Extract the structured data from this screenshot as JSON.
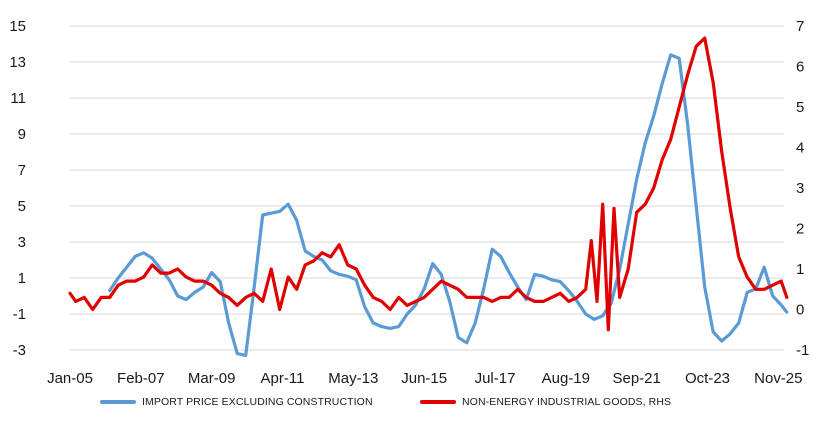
{
  "chart_data": {
    "type": "line",
    "x_ticks": [
      "Jan-05",
      "Feb-07",
      "Mar-09",
      "Apr-11",
      "May-13",
      "Jun-15",
      "Jul-17",
      "Aug-19",
      "Sep-21",
      "Oct-23",
      "Nov-25"
    ],
    "x_tick_decimal_years": [
      2005.0,
      2007.083,
      2009.167,
      2011.25,
      2013.333,
      2015.417,
      2017.5,
      2019.583,
      2021.667,
      2023.75,
      2025.833
    ],
    "y_left": {
      "ticks": [
        "15",
        "13",
        "11",
        "9",
        "7",
        "5",
        "3",
        "1",
        "-1",
        "-3"
      ],
      "range": [
        -3,
        15
      ]
    },
    "y_right": {
      "ticks": [
        "7",
        "6",
        "5",
        "4",
        "3",
        "2",
        "1",
        "0",
        "-1"
      ],
      "range": [
        -1,
        7
      ]
    },
    "grid": true,
    "series": [
      {
        "name": "IMPORT PRICE EXCLUDING CONSTRUCTION",
        "axis": "left",
        "color": "#5b9bd5",
        "points": [
          [
            "2006-03",
            0.3
          ],
          [
            "2006-06",
            1.0
          ],
          [
            "2006-09",
            1.6
          ],
          [
            "2006-12",
            2.2
          ],
          [
            "2007-03",
            2.4
          ],
          [
            "2007-06",
            2.1
          ],
          [
            "2007-09",
            1.5
          ],
          [
            "2007-12",
            0.9
          ],
          [
            "2008-03",
            0.0
          ],
          [
            "2008-06",
            -0.2
          ],
          [
            "2008-09",
            0.2
          ],
          [
            "2008-12",
            0.5
          ],
          [
            "2009-03",
            1.3
          ],
          [
            "2009-06",
            0.8
          ],
          [
            "2009-09",
            -1.5
          ],
          [
            "2009-12",
            -3.2
          ],
          [
            "2010-03",
            -3.3
          ],
          [
            "2010-06",
            0.5
          ],
          [
            "2010-09",
            4.5
          ],
          [
            "2010-12",
            4.6
          ],
          [
            "2011-03",
            4.7
          ],
          [
            "2011-06",
            5.1
          ],
          [
            "2011-09",
            4.2
          ],
          [
            "2011-12",
            2.5
          ],
          [
            "2012-03",
            2.2
          ],
          [
            "2012-06",
            2.0
          ],
          [
            "2012-09",
            1.4
          ],
          [
            "2012-12",
            1.2
          ],
          [
            "2013-03",
            1.1
          ],
          [
            "2013-06",
            0.9
          ],
          [
            "2013-09",
            -0.6
          ],
          [
            "2013-12",
            -1.5
          ],
          [
            "2014-03",
            -1.7
          ],
          [
            "2014-06",
            -1.8
          ],
          [
            "2014-09",
            -1.7
          ],
          [
            "2014-12",
            -1.0
          ],
          [
            "2015-03",
            -0.5
          ],
          [
            "2015-06",
            0.4
          ],
          [
            "2015-09",
            1.8
          ],
          [
            "2015-12",
            1.2
          ],
          [
            "2016-03",
            -0.3
          ],
          [
            "2016-06",
            -2.3
          ],
          [
            "2016-09",
            -2.6
          ],
          [
            "2016-12",
            -1.5
          ],
          [
            "2017-03",
            0.4
          ],
          [
            "2017-06",
            2.6
          ],
          [
            "2017-09",
            2.2
          ],
          [
            "2017-12",
            1.3
          ],
          [
            "2018-03",
            0.5
          ],
          [
            "2018-06",
            -0.2
          ],
          [
            "2018-09",
            1.2
          ],
          [
            "2018-12",
            1.1
          ],
          [
            "2019-03",
            0.9
          ],
          [
            "2019-06",
            0.8
          ],
          [
            "2019-09",
            0.3
          ],
          [
            "2019-12",
            -0.3
          ],
          [
            "2020-03",
            -1.0
          ],
          [
            "2020-06",
            -1.3
          ],
          [
            "2020-09",
            -1.1
          ],
          [
            "2020-12",
            -0.4
          ],
          [
            "2021-03",
            1.5
          ],
          [
            "2021-06",
            4.0
          ],
          [
            "2021-09",
            6.5
          ],
          [
            "2021-12",
            8.5
          ],
          [
            "2022-03",
            10.0
          ],
          [
            "2022-06",
            11.8
          ],
          [
            "2022-09",
            13.4
          ],
          [
            "2022-12",
            13.2
          ],
          [
            "2023-03",
            9.5
          ],
          [
            "2023-06",
            5.0
          ],
          [
            "2023-09",
            0.5
          ],
          [
            "2023-12",
            -2.0
          ],
          [
            "2024-03",
            -2.5
          ],
          [
            "2024-06",
            -2.1
          ],
          [
            "2024-09",
            -1.5
          ],
          [
            "2024-12",
            0.2
          ],
          [
            "2025-03",
            0.4
          ],
          [
            "2025-06",
            1.6
          ],
          [
            "2025-09",
            0.0
          ],
          [
            "2025-12",
            -0.5
          ],
          [
            "2026-02",
            -0.9
          ]
        ]
      },
      {
        "name": "NON-ENERGY INDUSTRIAL GOODS, RHS",
        "axis": "right",
        "color": "#e00000",
        "points": [
          [
            "2005-01",
            0.4
          ],
          [
            "2005-03",
            0.2
          ],
          [
            "2005-06",
            0.3
          ],
          [
            "2005-09",
            0.0
          ],
          [
            "2005-12",
            0.3
          ],
          [
            "2006-03",
            0.3
          ],
          [
            "2006-06",
            0.6
          ],
          [
            "2006-09",
            0.7
          ],
          [
            "2006-12",
            0.7
          ],
          [
            "2007-03",
            0.8
          ],
          [
            "2007-06",
            1.1
          ],
          [
            "2007-09",
            0.9
          ],
          [
            "2007-12",
            0.9
          ],
          [
            "2008-03",
            1.0
          ],
          [
            "2008-06",
            0.8
          ],
          [
            "2008-09",
            0.7
          ],
          [
            "2008-12",
            0.7
          ],
          [
            "2009-03",
            0.6
          ],
          [
            "2009-06",
            0.4
          ],
          [
            "2009-09",
            0.3
          ],
          [
            "2009-12",
            0.1
          ],
          [
            "2010-03",
            0.3
          ],
          [
            "2010-06",
            0.4
          ],
          [
            "2010-09",
            0.2
          ],
          [
            "2010-12",
            1.0
          ],
          [
            "2011-03",
            0.0
          ],
          [
            "2011-06",
            0.8
          ],
          [
            "2011-09",
            0.5
          ],
          [
            "2011-12",
            1.1
          ],
          [
            "2012-03",
            1.2
          ],
          [
            "2012-06",
            1.4
          ],
          [
            "2012-09",
            1.3
          ],
          [
            "2012-12",
            1.6
          ],
          [
            "2013-03",
            1.1
          ],
          [
            "2013-06",
            1.0
          ],
          [
            "2013-09",
            0.6
          ],
          [
            "2013-12",
            0.3
          ],
          [
            "2014-03",
            0.2
          ],
          [
            "2014-06",
            0.0
          ],
          [
            "2014-09",
            0.3
          ],
          [
            "2014-12",
            0.1
          ],
          [
            "2015-03",
            0.2
          ],
          [
            "2015-06",
            0.3
          ],
          [
            "2015-09",
            0.5
          ],
          [
            "2015-12",
            0.7
          ],
          [
            "2016-03",
            0.6
          ],
          [
            "2016-06",
            0.5
          ],
          [
            "2016-09",
            0.3
          ],
          [
            "2016-12",
            0.3
          ],
          [
            "2017-03",
            0.3
          ],
          [
            "2017-06",
            0.2
          ],
          [
            "2017-09",
            0.3
          ],
          [
            "2017-12",
            0.3
          ],
          [
            "2018-03",
            0.5
          ],
          [
            "2018-06",
            0.3
          ],
          [
            "2018-09",
            0.2
          ],
          [
            "2018-12",
            0.2
          ],
          [
            "2019-03",
            0.3
          ],
          [
            "2019-06",
            0.4
          ],
          [
            "2019-09",
            0.2
          ],
          [
            "2019-12",
            0.3
          ],
          [
            "2020-03",
            0.5
          ],
          [
            "2020-05",
            1.7
          ],
          [
            "2020-07",
            0.2
          ],
          [
            "2020-09",
            2.6
          ],
          [
            "2020-11",
            -0.5
          ],
          [
            "2021-01",
            2.5
          ],
          [
            "2021-03",
            0.3
          ],
          [
            "2021-06",
            1.0
          ],
          [
            "2021-09",
            2.4
          ],
          [
            "2021-12",
            2.6
          ],
          [
            "2022-03",
            3.0
          ],
          [
            "2022-06",
            3.7
          ],
          [
            "2022-09",
            4.2
          ],
          [
            "2022-12",
            5.0
          ],
          [
            "2023-03",
            5.8
          ],
          [
            "2023-06",
            6.5
          ],
          [
            "2023-09",
            6.7
          ],
          [
            "2023-12",
            5.6
          ],
          [
            "2024-03",
            3.9
          ],
          [
            "2024-06",
            2.5
          ],
          [
            "2024-09",
            1.3
          ],
          [
            "2024-12",
            0.8
          ],
          [
            "2025-03",
            0.5
          ],
          [
            "2025-06",
            0.5
          ],
          [
            "2025-09",
            0.6
          ],
          [
            "2025-12",
            0.7
          ],
          [
            "2026-02",
            0.3
          ]
        ]
      }
    ]
  }
}
